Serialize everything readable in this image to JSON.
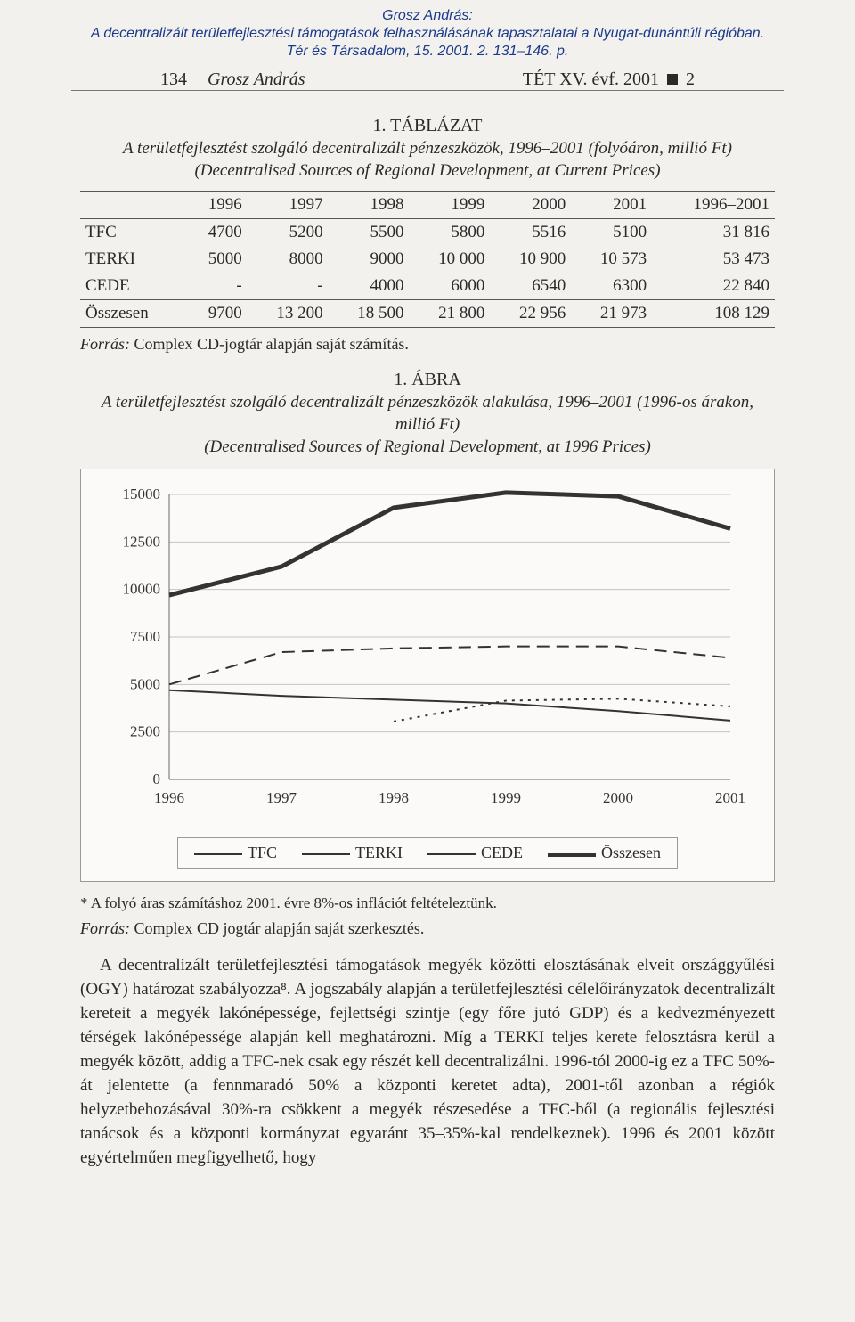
{
  "meta": {
    "author_line": "Grosz András:",
    "title_line": "A decentralizált területfejlesztési támogatások felhasználásának tapasztalatai a Nyugat-dunántúli régióban.",
    "source_line": "Tér és Társadalom, 15. 2001. 2. 131–146. p."
  },
  "header": {
    "page_no": "134",
    "author": "Grosz András",
    "journal": "TÉT XV. évf. 2001",
    "issue": "2"
  },
  "table1": {
    "label": "1. TÁBLÁZAT",
    "title_it": "A területfejlesztést szolgáló decentralizált pénzeszközök, 1996–2001 (folyóáron, millió Ft)",
    "title_en": "(Decentralised Sources of Regional Development, at Current Prices)",
    "columns": [
      "",
      "1996",
      "1997",
      "1998",
      "1999",
      "2000",
      "2001",
      "1996–2001"
    ],
    "rows": [
      [
        "TFC",
        "4700",
        "5200",
        "5500",
        "5800",
        "5516",
        "5100",
        "31 816"
      ],
      [
        "TERKI",
        "5000",
        "8000",
        "9000",
        "10 000",
        "10 900",
        "10 573",
        "53 473"
      ],
      [
        "CEDE",
        "-",
        "-",
        "4000",
        "6000",
        "6540",
        "6300",
        "22 840"
      ],
      [
        "Összesen",
        "9700",
        "13 200",
        "18 500",
        "21 800",
        "22 956",
        "21 973",
        "108 129"
      ]
    ],
    "source_label": "Forrás:",
    "source_text": "Complex CD-jogtár alapján saját számítás."
  },
  "figure1": {
    "label": "1. ÁBRA",
    "title_it": "A területfejlesztést szolgáló decentralizált pénzeszközök alakulása, 1996–2001 (1996-os árakon, millió Ft)",
    "title_en": "(Decentralised Sources of Regional Development, at 1996 Prices)",
    "chart": {
      "type": "line",
      "x_categories": [
        "1996",
        "1997",
        "1998",
        "1999",
        "2000",
        "2001"
      ],
      "ylim": [
        0,
        15000
      ],
      "ytick_step": 2500,
      "background_color": "#fbfaf8",
      "grid_color": "#c7c4bf",
      "axis_color": "#666666",
      "text_color": "#333333",
      "tick_fontsize": 17,
      "series": [
        {
          "name": "TFC",
          "style": "thin",
          "color": "#333333",
          "line_width": 2,
          "dash": "solid",
          "values": [
            4700,
            4400,
            4200,
            4000,
            3600,
            3100
          ]
        },
        {
          "name": "TERKI",
          "style": "dash",
          "color": "#333333",
          "line_width": 2,
          "dash": "14 8",
          "values": [
            5000,
            6700,
            6900,
            7000,
            7000,
            6400
          ]
        },
        {
          "name": "CEDE",
          "style": "dot",
          "color": "#333333",
          "line_width": 2,
          "dash": "3 6",
          "values": [
            null,
            null,
            3050,
            4150,
            4250,
            3850
          ]
        },
        {
          "name": "Összesen",
          "style": "thick",
          "color": "#333333",
          "line_width": 5,
          "dash": "solid",
          "values": [
            9700,
            11200,
            14300,
            15100,
            14900,
            13200
          ]
        }
      ],
      "legend": [
        {
          "label": "TFC",
          "swatch": "thin"
        },
        {
          "label": "TERKI",
          "swatch": "dash"
        },
        {
          "label": "CEDE",
          "swatch": "dot"
        },
        {
          "label": "Összesen",
          "swatch": "thick"
        }
      ]
    },
    "footnote": "* A folyó áras számításhoz 2001. évre 8%-os inflációt feltételeztünk.",
    "source_label": "Forrás:",
    "source_text": "Complex CD jogtár alapján saját szerkesztés."
  },
  "body": {
    "p1": "A decentralizált területfejlesztési támogatások megyék közötti elosztásának elveit országgyűlési (OGY) határozat szabályozza⁸. A jogszabály alapján a területfejlesztési célelőirányzatok decentralizált kereteit a megyék lakónépessége, fejlettségi szintje (egy főre jutó GDP) és a kedvezményezett térségek lakónépessége alapján kell meghatározni. Míg a TERKI teljes kerete felosztásra kerül a megyék között, addig a TFC-nek csak egy részét kell decentralizálni. 1996-tól 2000-ig ez a TFC 50%-át jelentette (a fennmaradó 50% a központi keretet adta), 2001-től azonban a régiók helyzetbehozásával 30%-ra csökkent a megyék részesedése a TFC-ből (a regionális fejlesztési tanácsok és a központi kormányzat egyaránt 35–35%-kal rendelkeznek). 1996 és 2001 között egyértelműen megfigyelhető, hogy"
  }
}
